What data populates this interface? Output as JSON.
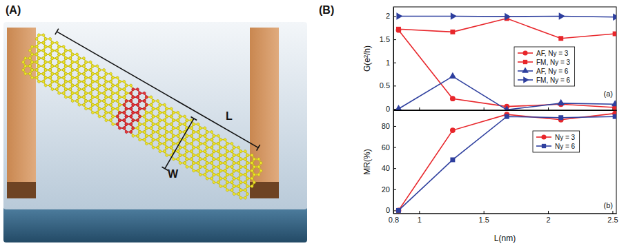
{
  "panel_labels": [
    "(A)",
    "(B)"
  ],
  "diagram": {
    "length_label": "L",
    "width_label": "W"
  },
  "chart_data": [
    {
      "type": "line",
      "x": [
        0.84,
        1.26,
        1.68,
        2.1,
        2.52
      ],
      "xlim": [
        0.8,
        2.53
      ],
      "xticks": [
        0.8,
        1,
        1.5,
        2,
        2.5
      ],
      "ylim": [
        -0.03,
        2.2
      ],
      "yticks": [
        0,
        0.5,
        1,
        1.5,
        2
      ],
      "y_label": "G(e²/h)",
      "annotation": "(a)",
      "legend": "center right",
      "tick_labels": "y",
      "series": [
        {
          "name": "AF, Ny = 3",
          "color": "#e8262b",
          "marker": "circle",
          "values": [
            1.7,
            0.22,
            0.05,
            0.1,
            0.03
          ]
        },
        {
          "name": "FM, Ny = 3",
          "color": "#e8262b",
          "marker": "square",
          "values": [
            1.72,
            1.66,
            1.95,
            1.52,
            1.62
          ]
        },
        {
          "name": "AF, Ny = 6",
          "color": "#2e3f9e",
          "marker": "triangle-up",
          "values": [
            0,
            0.7,
            -0.02,
            0.12,
            0.1
          ]
        },
        {
          "name": "FM, Ny = 6",
          "color": "#2e3f9e",
          "marker": "triangle-right",
          "values": [
            2.0,
            2.0,
            1.99,
            2.0,
            1.98
          ]
        }
      ]
    },
    {
      "type": "line",
      "x": [
        0.84,
        1.26,
        1.68,
        2.1,
        2.52
      ],
      "xlim": [
        0.8,
        2.53
      ],
      "xticks": [
        0.8,
        1,
        1.5,
        2,
        2.5
      ],
      "ylim": [
        -3,
        95
      ],
      "yticks": [
        0,
        20,
        40,
        60,
        80
      ],
      "x_label": "L(nm)",
      "y_label": "MR(%)",
      "annotation": "(b)",
      "legend": "upper right",
      "series": [
        {
          "name": "Ny = 3",
          "color": "#e8262b",
          "marker": "circle",
          "values": [
            0,
            76,
            91,
            86,
            92
          ]
        },
        {
          "name": "Ny = 6",
          "color": "#2e3f9e",
          "marker": "square",
          "values": [
            0,
            48,
            89,
            88,
            89
          ]
        }
      ]
    }
  ]
}
